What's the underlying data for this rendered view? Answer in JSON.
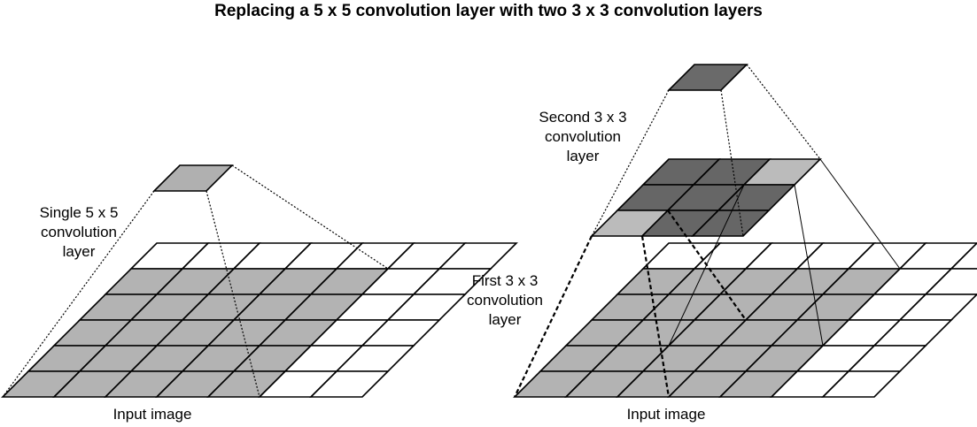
{
  "title": "Replacing a 5 x 5 convolution layer with two 3 x 3 convolution layers",
  "left_diagram": {
    "layer_label": [
      "Single 5 x 5",
      "convolution",
      "layer"
    ],
    "input_label": "Input image",
    "input_grid": {
      "rows": 6,
      "cols": 7
    },
    "receptive_field": "5 x 5",
    "output": "1 x 1"
  },
  "right_diagram": {
    "second_layer_label": [
      "Second 3 x 3",
      "convolution",
      "layer"
    ],
    "first_layer_label": [
      "First 3 x 3",
      "convolution",
      "layer"
    ],
    "input_label": "Input image",
    "input_grid": {
      "rows": 6,
      "cols": 7
    },
    "middle_grid": {
      "rows": 3,
      "cols": 3
    },
    "output": "1 x 1"
  },
  "colors": {
    "shaded_input": "#b3b3b3",
    "light_cell": "#bbbbbb",
    "dark_cell": "#666666",
    "output_left": "#b0b0b0",
    "output_right": "#6a6a6a",
    "line": "#000000",
    "background": "#ffffff"
  }
}
